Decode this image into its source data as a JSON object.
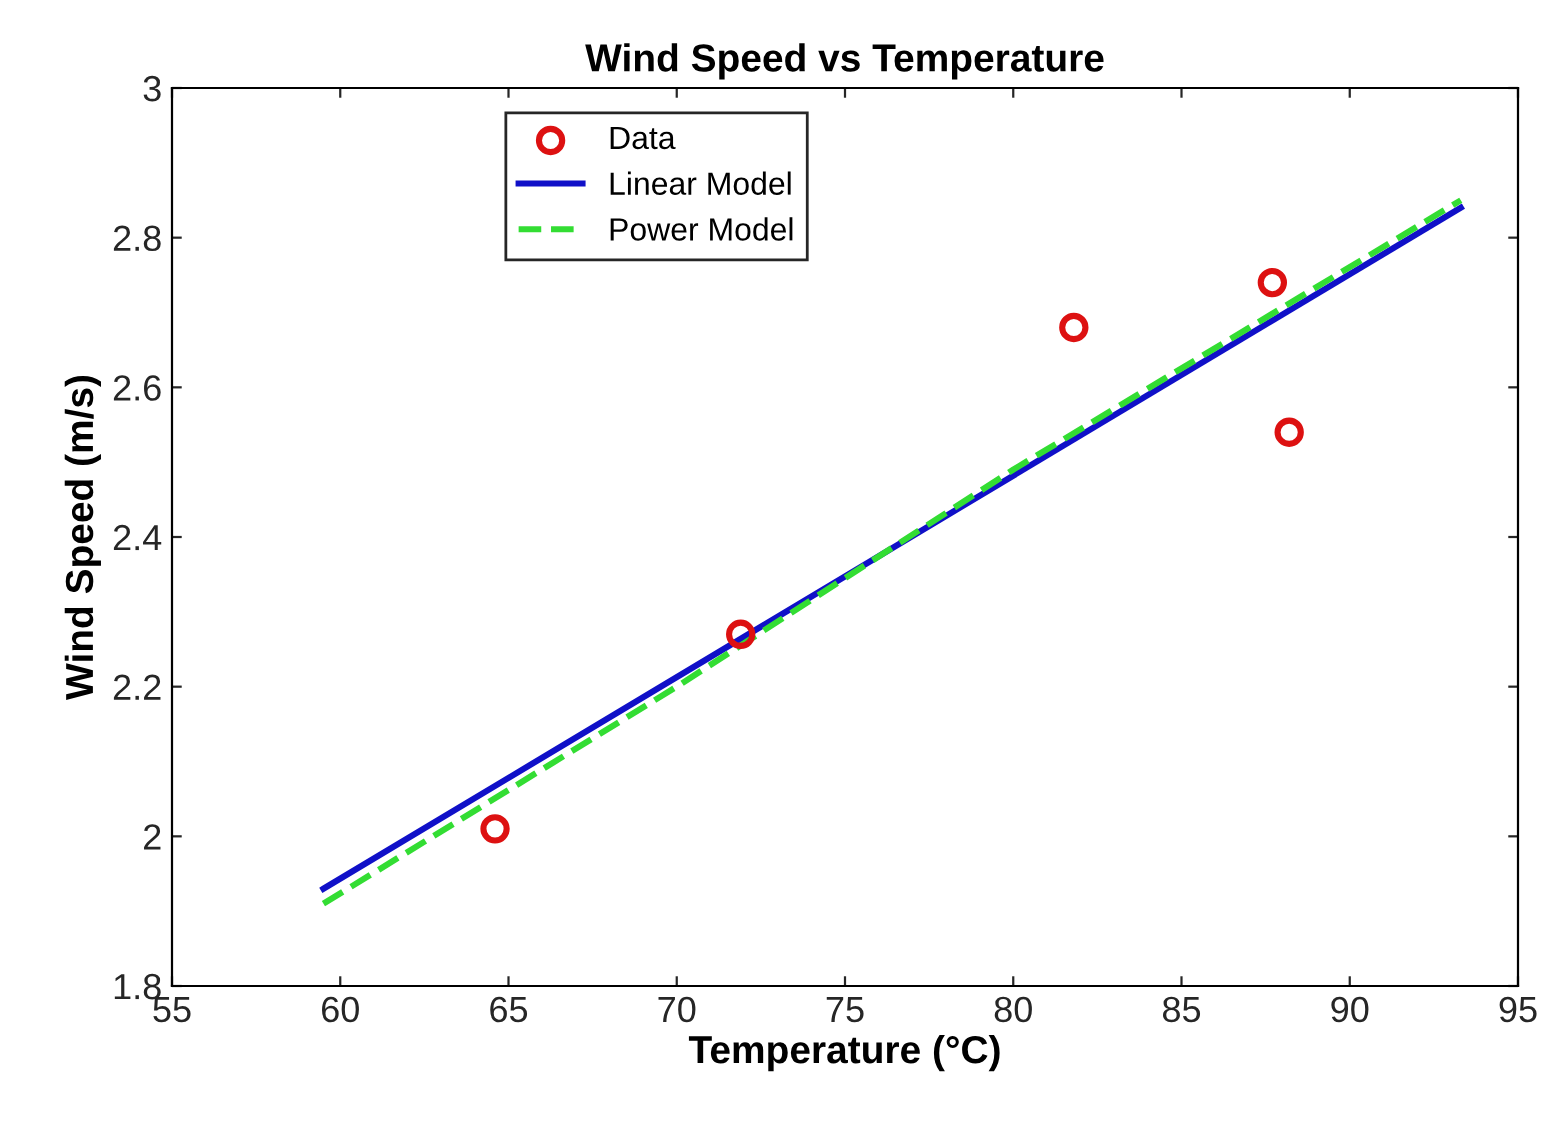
{
  "chart_data": {
    "type": "scatter",
    "title": "Wind Speed vs Temperature",
    "xlabel": "Temperature (°C)",
    "ylabel": "Wind Speed (m/s)",
    "series": [
      {
        "name": "Data",
        "color": "#dd1111",
        "marker": "circle",
        "x": [
          64.6,
          71.9,
          81.8,
          87.7,
          88.2
        ],
        "values": [
          2.01,
          2.27,
          2.68,
          2.74,
          2.54
        ]
      },
      {
        "name": "Linear Model",
        "type": "line",
        "color": "#1010c8",
        "line_style": "solid",
        "marker": "none",
        "x": [
          59.5,
          93.3
        ],
        "values": [
          1.93,
          2.84
        ]
      },
      {
        "name": "Power Model",
        "type": "line",
        "color": "#33dd33",
        "line_style": "dashed",
        "marker": "none",
        "x": [
          59.5,
          70,
          80,
          93.3
        ],
        "values": [
          1.91,
          2.2,
          2.49,
          2.85
        ]
      }
    ],
    "xlim": [
      55,
      95
    ],
    "xticks": [
      55,
      60,
      65,
      70,
      75,
      80,
      85,
      90,
      95
    ],
    "ylim": [
      1.8,
      3
    ],
    "yticks": [
      1.8,
      2,
      2.2,
      2.4,
      2.6,
      2.8,
      3
    ],
    "grid": false,
    "legend": "top"
  }
}
